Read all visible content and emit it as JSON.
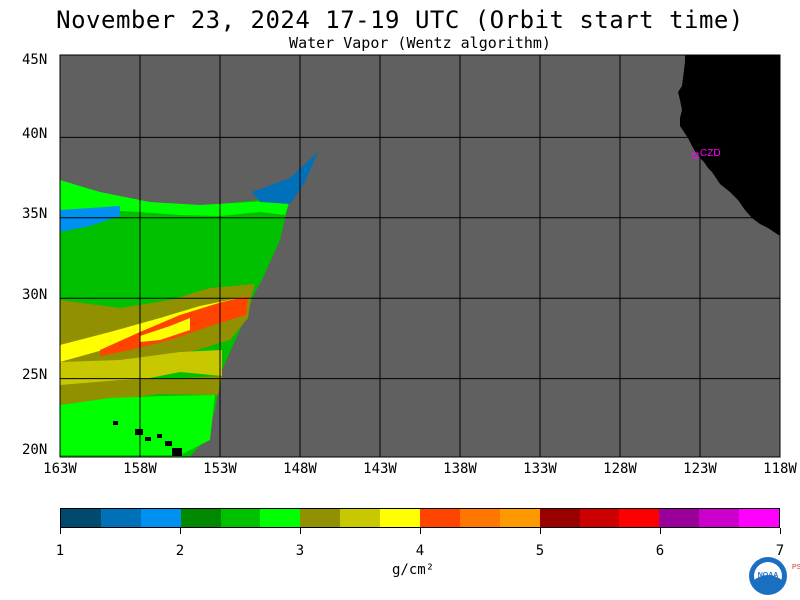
{
  "header": {
    "title": "November 23, 2024  17-19 UTC  (Orbit start time)",
    "subtitle": "Water Vapor (Wentz algorithm)"
  },
  "map": {
    "station_label": "CZD",
    "lat_labels": [
      "45N",
      "40N",
      "35N",
      "30N",
      "25N",
      "20N"
    ],
    "lon_labels": [
      "163W",
      "158W",
      "153W",
      "148W",
      "143W",
      "138W",
      "133W",
      "128W",
      "123W",
      "118W"
    ],
    "colors": {
      "no_data": "#606060",
      "land": "#000000",
      "grid": "#000000",
      "station": "#ff00ff"
    }
  },
  "colorbar": {
    "colors": [
      "#004a70",
      "#0070b8",
      "#0090f0",
      "#008800",
      "#00c000",
      "#00ff00",
      "#909000",
      "#c8c800",
      "#ffff00",
      "#ff4400",
      "#ff7700",
      "#ff9900",
      "#990000",
      "#cc0000",
      "#ff0000",
      "#990099",
      "#cc00cc",
      "#ff00ff"
    ],
    "tick_labels": [
      "1",
      "2",
      "3",
      "4",
      "5",
      "6",
      "7"
    ],
    "units": "g/cm²"
  },
  "logo": {
    "text": "NOAA",
    "side_text": "PSL"
  }
}
